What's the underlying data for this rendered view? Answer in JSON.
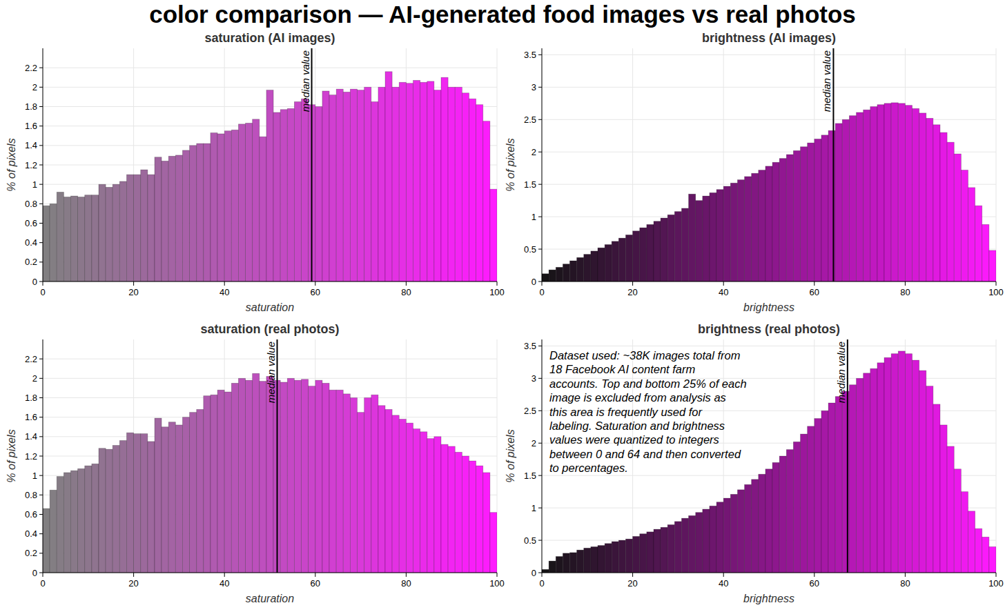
{
  "title": "color comparison — AI-generated food images vs real photos",
  "chart_data": [
    {
      "type": "histogram",
      "title": "saturation (AI images)",
      "x_label": "saturation",
      "y_label": "% of pixels",
      "bins": [
        0,
        1.54,
        3.08,
        4.62,
        6.15,
        7.69,
        9.23,
        10.77,
        12.31,
        13.85,
        15.38,
        16.92,
        18.46,
        20,
        21.54,
        23.08,
        24.62,
        26.15,
        27.69,
        29.23,
        30.77,
        32.31,
        33.85,
        35.38,
        36.92,
        38.46,
        40,
        41.54,
        43.08,
        44.62,
        46.15,
        47.69,
        49.23,
        50.77,
        52.31,
        53.85,
        55.38,
        56.92,
        58.46,
        60,
        61.54,
        63.08,
        64.62,
        66.15,
        67.69,
        69.23,
        70.77,
        72.31,
        73.85,
        75.38,
        76.92,
        78.46,
        80,
        81.54,
        83.08,
        84.62,
        86.15,
        87.69,
        89.23,
        90.77,
        92.31,
        93.85,
        95.38,
        96.92,
        98.46,
        100
      ],
      "values": [
        0.78,
        0.8,
        0.92,
        0.87,
        0.88,
        0.87,
        0.89,
        0.89,
        1.0,
        0.97,
        1.0,
        1.03,
        1.1,
        1.1,
        1.15,
        1.1,
        1.28,
        1.24,
        1.29,
        1.3,
        1.35,
        1.4,
        1.42,
        1.42,
        1.53,
        1.52,
        1.55,
        1.56,
        1.62,
        1.63,
        1.67,
        1.49,
        1.97,
        1.74,
        1.77,
        1.78,
        1.85,
        1.88,
        1.82,
        1.8,
        1.96,
        1.92,
        1.98,
        1.95,
        1.98,
        1.97,
        2.0,
        1.85,
        2.0,
        2.16,
        2.0,
        2.05,
        2.04,
        2.07,
        2.05,
        2.06,
        1.97,
        2.1,
        2.0,
        2.0,
        1.94,
        1.88,
        1.82,
        1.65,
        0.95
      ],
      "color": "#ff1aff",
      "xlim": [
        0,
        100
      ],
      "ylim": [
        0,
        2.4
      ],
      "xticks": [
        0,
        20,
        40,
        60,
        80,
        100
      ],
      "yticks": [
        0,
        0.2,
        0.4,
        0.6,
        0.8,
        1,
        1.2,
        1.4,
        1.6,
        1.8,
        2,
        2.2
      ],
      "grid": true,
      "annotations": [
        {
          "text": "median value",
          "x": 59.2
        }
      ]
    },
    {
      "type": "histogram",
      "title": "brightness (AI images)",
      "x_label": "brightness",
      "y_label": "% of pixels",
      "bins": [
        0,
        1.54,
        3.08,
        4.62,
        6.15,
        7.69,
        9.23,
        10.77,
        12.31,
        13.85,
        15.38,
        16.92,
        18.46,
        20,
        21.54,
        23.08,
        24.62,
        26.15,
        27.69,
        29.23,
        30.77,
        32.31,
        33.85,
        35.38,
        36.92,
        38.46,
        40,
        41.54,
        43.08,
        44.62,
        46.15,
        47.69,
        49.23,
        50.77,
        52.31,
        53.85,
        55.38,
        56.92,
        58.46,
        60,
        61.54,
        63.08,
        64.62,
        66.15,
        67.69,
        69.23,
        70.77,
        72.31,
        73.85,
        75.38,
        76.92,
        78.46,
        80,
        81.54,
        83.08,
        84.62,
        86.15,
        87.69,
        89.23,
        90.77,
        92.31,
        93.85,
        95.38,
        96.92,
        98.46,
        100
      ],
      "values": [
        0.12,
        0.18,
        0.22,
        0.27,
        0.32,
        0.37,
        0.42,
        0.47,
        0.52,
        0.57,
        0.62,
        0.67,
        0.72,
        0.78,
        0.83,
        0.88,
        0.93,
        0.98,
        1.03,
        1.08,
        1.13,
        1.35,
        1.25,
        1.32,
        1.37,
        1.42,
        1.47,
        1.52,
        1.57,
        1.62,
        1.67,
        1.72,
        1.78,
        1.84,
        1.9,
        1.96,
        2.02,
        2.08,
        2.14,
        2.2,
        2.26,
        2.33,
        2.44,
        2.5,
        2.56,
        2.61,
        2.65,
        2.7,
        2.73,
        2.75,
        2.76,
        2.75,
        2.72,
        2.67,
        2.6,
        2.52,
        2.42,
        2.3,
        2.15,
        1.97,
        1.72,
        1.45,
        1.17,
        0.88,
        0.48
      ],
      "color": "#ff1aff",
      "xlim": [
        0,
        100
      ],
      "ylim": [
        0,
        3.6
      ],
      "xticks": [
        0,
        20,
        40,
        60,
        80,
        100
      ],
      "yticks": [
        0,
        0.5,
        1,
        1.5,
        2,
        2.5,
        3,
        3.5
      ],
      "grid": true,
      "annotations": [
        {
          "text": "median value",
          "x": 64.2
        }
      ]
    },
    {
      "type": "histogram",
      "title": "saturation (real photos)",
      "x_label": "saturation",
      "y_label": "% of pixels",
      "bins": [
        0,
        1.54,
        3.08,
        4.62,
        6.15,
        7.69,
        9.23,
        10.77,
        12.31,
        13.85,
        15.38,
        16.92,
        18.46,
        20,
        21.54,
        23.08,
        24.62,
        26.15,
        27.69,
        29.23,
        30.77,
        32.31,
        33.85,
        35.38,
        36.92,
        38.46,
        40,
        41.54,
        43.08,
        44.62,
        46.15,
        47.69,
        49.23,
        50.77,
        52.31,
        53.85,
        55.38,
        56.92,
        58.46,
        60,
        61.54,
        63.08,
        64.62,
        66.15,
        67.69,
        69.23,
        70.77,
        72.31,
        73.85,
        75.38,
        76.92,
        78.46,
        80,
        81.54,
        83.08,
        84.62,
        86.15,
        87.69,
        89.23,
        90.77,
        92.31,
        93.85,
        95.38,
        96.92,
        98.46,
        100
      ],
      "values": [
        0.66,
        0.85,
        0.99,
        1.03,
        1.05,
        1.07,
        1.1,
        1.12,
        1.28,
        1.27,
        1.31,
        1.36,
        1.44,
        1.43,
        1.43,
        1.35,
        1.59,
        1.5,
        1.55,
        1.52,
        1.6,
        1.65,
        1.68,
        1.82,
        1.83,
        1.88,
        1.86,
        1.95,
        2.0,
        1.98,
        2.05,
        1.97,
        2.02,
        1.98,
        1.96,
        2.0,
        1.98,
        1.99,
        1.92,
        1.98,
        1.95,
        1.88,
        1.88,
        1.84,
        1.8,
        1.65,
        1.8,
        1.83,
        1.72,
        1.68,
        1.62,
        1.58,
        1.54,
        1.48,
        1.45,
        1.38,
        1.4,
        1.32,
        1.3,
        1.24,
        1.2,
        1.15,
        1.1,
        1.03,
        0.62
      ],
      "color": "#ff1aff",
      "xlim": [
        0,
        100
      ],
      "ylim": [
        0,
        2.4
      ],
      "xticks": [
        0,
        20,
        40,
        60,
        80,
        100
      ],
      "yticks": [
        0,
        0.2,
        0.4,
        0.6,
        0.8,
        1,
        1.2,
        1.4,
        1.6,
        1.8,
        2,
        2.2
      ],
      "grid": true,
      "annotations": [
        {
          "text": "median value",
          "x": 51.6
        }
      ]
    },
    {
      "type": "histogram",
      "title": "brightness (real photos)",
      "x_label": "brightness",
      "y_label": "% of pixels",
      "bins": [
        0,
        1.54,
        3.08,
        4.62,
        6.15,
        7.69,
        9.23,
        10.77,
        12.31,
        13.85,
        15.38,
        16.92,
        18.46,
        20,
        21.54,
        23.08,
        24.62,
        26.15,
        27.69,
        29.23,
        30.77,
        32.31,
        33.85,
        35.38,
        36.92,
        38.46,
        40,
        41.54,
        43.08,
        44.62,
        46.15,
        47.69,
        49.23,
        50.77,
        52.31,
        53.85,
        55.38,
        56.92,
        58.46,
        60,
        61.54,
        63.08,
        64.62,
        66.15,
        67.69,
        69.23,
        70.77,
        72.31,
        73.85,
        75.38,
        76.92,
        78.46,
        80,
        81.54,
        83.08,
        84.62,
        86.15,
        87.69,
        89.23,
        90.77,
        92.31,
        93.85,
        95.38,
        96.92,
        98.46,
        100
      ],
      "values": [
        0.05,
        0.18,
        0.25,
        0.3,
        0.31,
        0.35,
        0.38,
        0.4,
        0.42,
        0.45,
        0.48,
        0.5,
        0.52,
        0.56,
        0.6,
        0.63,
        0.67,
        0.7,
        0.74,
        0.79,
        0.84,
        0.88,
        0.93,
        0.98,
        1.03,
        1.09,
        1.15,
        1.21,
        1.28,
        1.36,
        1.44,
        1.52,
        1.6,
        1.7,
        1.8,
        1.9,
        2.02,
        2.14,
        2.26,
        2.38,
        2.5,
        2.62,
        2.72,
        2.8,
        2.9,
        3.0,
        3.08,
        3.15,
        3.24,
        3.32,
        3.38,
        3.42,
        3.38,
        3.28,
        3.12,
        2.88,
        2.6,
        2.28,
        1.95,
        1.6,
        1.25,
        0.95,
        0.68,
        0.55,
        0.4
      ],
      "color": "#ff1aff",
      "xlim": [
        0,
        100
      ],
      "ylim": [
        0,
        3.6
      ],
      "xticks": [
        0,
        20,
        40,
        60,
        80,
        100
      ],
      "yticks": [
        0,
        0.5,
        1,
        1.5,
        2,
        2.5,
        3,
        3.5
      ],
      "grid": true,
      "annotations": [
        {
          "text": "median value",
          "x": 67.3
        }
      ],
      "note": [
        "Dataset used: ~38K images total from",
        "18 Facebook AI content farm",
        "accounts. Top and bottom 25% of each",
        "image is excluded from analysis as",
        "this area is frequently used for",
        "labeling. Saturation and brightness",
        "values were quantized to integers",
        "between 0 and 64 and then converted",
        "to percentages."
      ]
    }
  ]
}
